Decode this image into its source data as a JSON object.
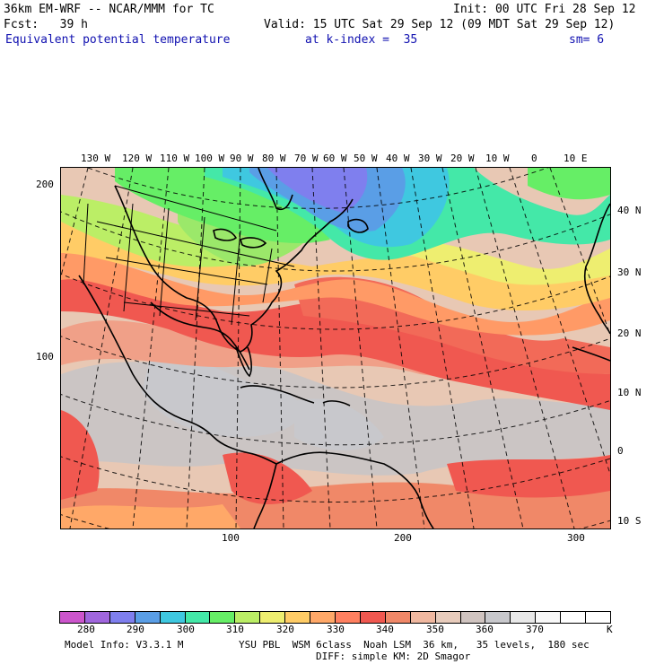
{
  "header": {
    "model_title": "36km EM-WRF -- NCAR/MMM for TC",
    "init": "Init: 00 UTC Fri 28 Sep 12",
    "forecast": "Fcst:   39 h",
    "valid": "Valid: 15 UTC Sat 29 Sep 12 (09 MDT Sat 29 Sep 12)",
    "field": "Equivalent potential temperature",
    "level": "at k-index =  35",
    "smoothing": "sm= 6"
  },
  "longitude_labels": [
    "130 W",
    "120 W",
    "110 W",
    "100 W",
    "90 W",
    "80 W",
    "70 W",
    "60 W",
    "50 W",
    "40 W",
    "30 W",
    "20 W",
    "10 W",
    "0",
    "10 E"
  ],
  "latitude_labels": [
    "40 N",
    "30 N",
    "20 N",
    "10 N",
    "0",
    "10 S"
  ],
  "grid_y_labels": [
    "200",
    "100"
  ],
  "grid_x_labels": [
    "100",
    "200",
    "300"
  ],
  "colorbar": {
    "unit": "K",
    "tick_labels": [
      "280",
      "290",
      "300",
      "310",
      "320",
      "330",
      "340",
      "350",
      "360",
      "370"
    ],
    "colors": [
      "#cc55cc",
      "#a066dd",
      "#7f7fee",
      "#5a9ee6",
      "#3fc8e0",
      "#44e8a8",
      "#66ee66",
      "#bbee66",
      "#eeee70",
      "#ffcc66",
      "#ffa868",
      "#ff8060",
      "#f05850",
      "#f08868",
      "#f0b8a0",
      "#e8ccbc",
      "#d0c4c0",
      "#c8c8cc",
      "#e8e8e8",
      "#f8f8f8",
      "#ffffff",
      "#ffffff"
    ]
  },
  "footer": {
    "model_info": "Model Info: V3.3.1 M",
    "physics": "YSU PBL  WSM 6class  Noah LSM  36 km,   35 levels,  180 sec",
    "diffusion": "DIFF: simple KM: 2D Smagor"
  }
}
